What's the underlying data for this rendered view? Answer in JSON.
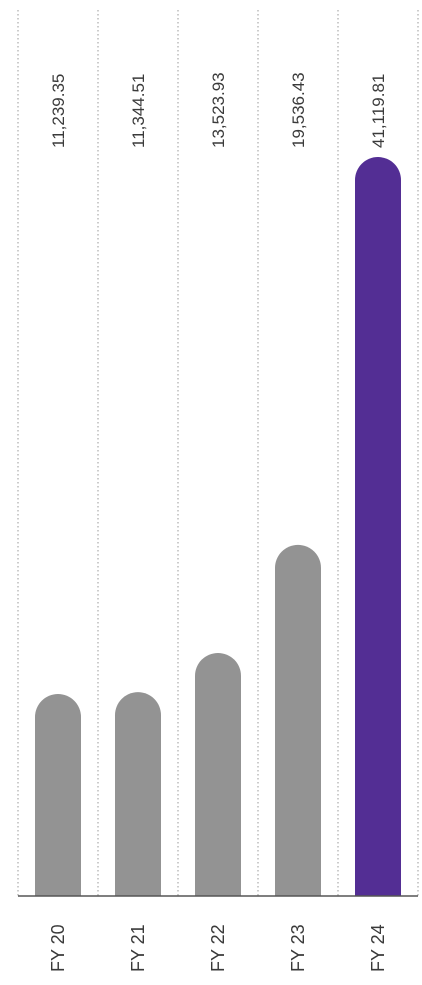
{
  "chart_data": {
    "type": "bar",
    "orientation": "vertical-bars, rotated labels",
    "categories": [
      "FY 20",
      "FY 21",
      "FY 22",
      "FY 23",
      "FY 24"
    ],
    "values": [
      11239.35,
      11344.51,
      13523.93,
      19536.43,
      41119.81
    ],
    "value_labels": [
      "11,239.35",
      "11,344.51",
      "13,523.93",
      "19,536.43",
      "41,119.81"
    ],
    "title": "",
    "xlabel": "",
    "ylabel": "",
    "ylim": [
      0,
      41119.81
    ],
    "grid": true,
    "colors": {
      "default_bar": "#939393",
      "highlight_bar": "#532e94",
      "grid": "#9a9a9a",
      "text": "#3a3a3a"
    },
    "highlight_index": 4
  }
}
